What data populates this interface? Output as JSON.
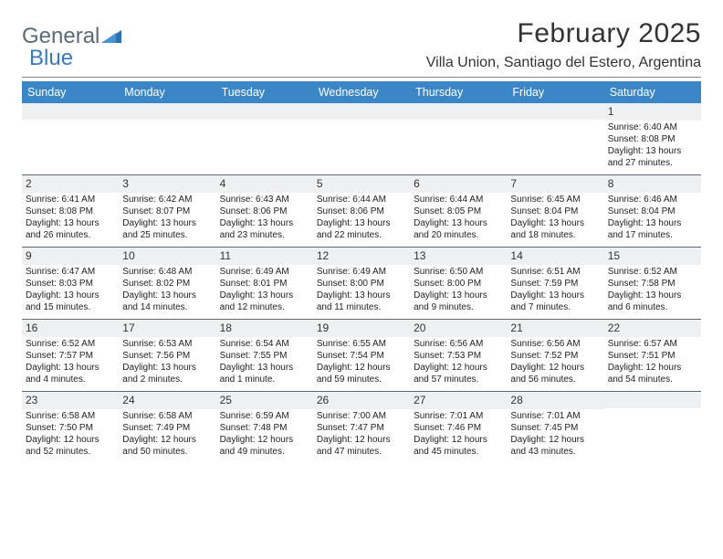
{
  "brand": {
    "part1": "General",
    "part2": "Blue"
  },
  "title": "February 2025",
  "location": "Villa Union, Santiago del Estero, Argentina",
  "colors": {
    "header_bg": "#3b86c6",
    "header_text": "#ffffff",
    "daynum_bg": "#eef0f2",
    "divider": "#5a6a7a",
    "brand_gray": "#5a6a7a",
    "brand_blue": "#3a7ab8"
  },
  "days_of_week": [
    "Sunday",
    "Monday",
    "Tuesday",
    "Wednesday",
    "Thursday",
    "Friday",
    "Saturday"
  ],
  "weeks": [
    [
      {
        "n": "",
        "info": ""
      },
      {
        "n": "",
        "info": ""
      },
      {
        "n": "",
        "info": ""
      },
      {
        "n": "",
        "info": ""
      },
      {
        "n": "",
        "info": ""
      },
      {
        "n": "",
        "info": ""
      },
      {
        "n": "1",
        "info": "Sunrise: 6:40 AM\nSunset: 8:08 PM\nDaylight: 13 hours and 27 minutes."
      }
    ],
    [
      {
        "n": "2",
        "info": "Sunrise: 6:41 AM\nSunset: 8:08 PM\nDaylight: 13 hours and 26 minutes."
      },
      {
        "n": "3",
        "info": "Sunrise: 6:42 AM\nSunset: 8:07 PM\nDaylight: 13 hours and 25 minutes."
      },
      {
        "n": "4",
        "info": "Sunrise: 6:43 AM\nSunset: 8:06 PM\nDaylight: 13 hours and 23 minutes."
      },
      {
        "n": "5",
        "info": "Sunrise: 6:44 AM\nSunset: 8:06 PM\nDaylight: 13 hours and 22 minutes."
      },
      {
        "n": "6",
        "info": "Sunrise: 6:44 AM\nSunset: 8:05 PM\nDaylight: 13 hours and 20 minutes."
      },
      {
        "n": "7",
        "info": "Sunrise: 6:45 AM\nSunset: 8:04 PM\nDaylight: 13 hours and 18 minutes."
      },
      {
        "n": "8",
        "info": "Sunrise: 6:46 AM\nSunset: 8:04 PM\nDaylight: 13 hours and 17 minutes."
      }
    ],
    [
      {
        "n": "9",
        "info": "Sunrise: 6:47 AM\nSunset: 8:03 PM\nDaylight: 13 hours and 15 minutes."
      },
      {
        "n": "10",
        "info": "Sunrise: 6:48 AM\nSunset: 8:02 PM\nDaylight: 13 hours and 14 minutes."
      },
      {
        "n": "11",
        "info": "Sunrise: 6:49 AM\nSunset: 8:01 PM\nDaylight: 13 hours and 12 minutes."
      },
      {
        "n": "12",
        "info": "Sunrise: 6:49 AM\nSunset: 8:00 PM\nDaylight: 13 hours and 11 minutes."
      },
      {
        "n": "13",
        "info": "Sunrise: 6:50 AM\nSunset: 8:00 PM\nDaylight: 13 hours and 9 minutes."
      },
      {
        "n": "14",
        "info": "Sunrise: 6:51 AM\nSunset: 7:59 PM\nDaylight: 13 hours and 7 minutes."
      },
      {
        "n": "15",
        "info": "Sunrise: 6:52 AM\nSunset: 7:58 PM\nDaylight: 13 hours and 6 minutes."
      }
    ],
    [
      {
        "n": "16",
        "info": "Sunrise: 6:52 AM\nSunset: 7:57 PM\nDaylight: 13 hours and 4 minutes."
      },
      {
        "n": "17",
        "info": "Sunrise: 6:53 AM\nSunset: 7:56 PM\nDaylight: 13 hours and 2 minutes."
      },
      {
        "n": "18",
        "info": "Sunrise: 6:54 AM\nSunset: 7:55 PM\nDaylight: 13 hours and 1 minute."
      },
      {
        "n": "19",
        "info": "Sunrise: 6:55 AM\nSunset: 7:54 PM\nDaylight: 12 hours and 59 minutes."
      },
      {
        "n": "20",
        "info": "Sunrise: 6:56 AM\nSunset: 7:53 PM\nDaylight: 12 hours and 57 minutes."
      },
      {
        "n": "21",
        "info": "Sunrise: 6:56 AM\nSunset: 7:52 PM\nDaylight: 12 hours and 56 minutes."
      },
      {
        "n": "22",
        "info": "Sunrise: 6:57 AM\nSunset: 7:51 PM\nDaylight: 12 hours and 54 minutes."
      }
    ],
    [
      {
        "n": "23",
        "info": "Sunrise: 6:58 AM\nSunset: 7:50 PM\nDaylight: 12 hours and 52 minutes."
      },
      {
        "n": "24",
        "info": "Sunrise: 6:58 AM\nSunset: 7:49 PM\nDaylight: 12 hours and 50 minutes."
      },
      {
        "n": "25",
        "info": "Sunrise: 6:59 AM\nSunset: 7:48 PM\nDaylight: 12 hours and 49 minutes."
      },
      {
        "n": "26",
        "info": "Sunrise: 7:00 AM\nSunset: 7:47 PM\nDaylight: 12 hours and 47 minutes."
      },
      {
        "n": "27",
        "info": "Sunrise: 7:01 AM\nSunset: 7:46 PM\nDaylight: 12 hours and 45 minutes."
      },
      {
        "n": "28",
        "info": "Sunrise: 7:01 AM\nSunset: 7:45 PM\nDaylight: 12 hours and 43 minutes."
      },
      {
        "n": "",
        "info": ""
      }
    ]
  ]
}
